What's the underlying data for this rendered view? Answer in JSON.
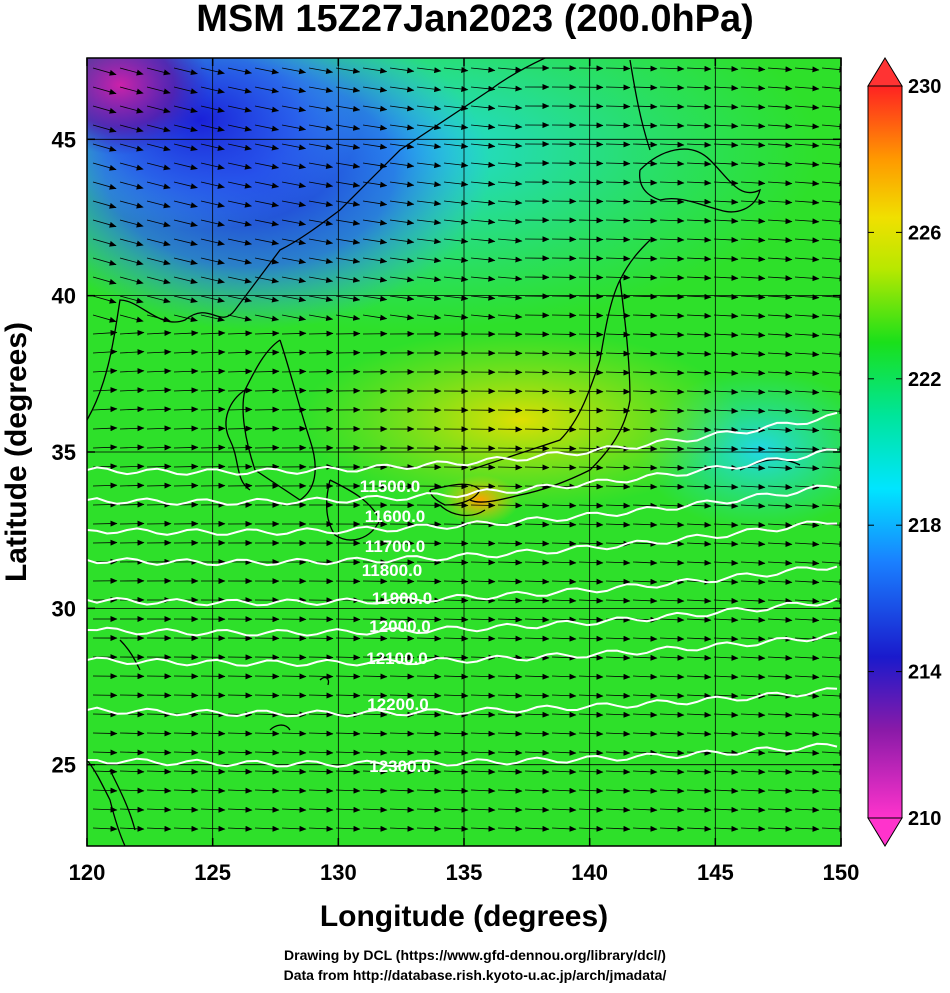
{
  "title": "MSM 15Z27Jan2023 (200.0hPa)",
  "axes": {
    "xlabel": "Longitude (degrees)",
    "ylabel": "Latitude  (degrees)",
    "xlim": [
      120,
      150
    ],
    "ylim": [
      22.4,
      47.6
    ],
    "xticks": [
      "120",
      "125",
      "130",
      "135",
      "140",
      "145",
      "150"
    ],
    "yticks": [
      "25",
      "30",
      "35",
      "40",
      "45"
    ]
  },
  "colorbar": {
    "ticks": [
      "210",
      "214",
      "218",
      "222",
      "226",
      "230"
    ],
    "range": [
      210,
      230
    ],
    "colors": {
      "min": "#ff33cc",
      "low": "#1a1acc",
      "mid_low": "#00e5ff",
      "mid": "#1ae01a",
      "high": "#e8e800",
      "higher": "#ff9900",
      "max": "#ff3333"
    }
  },
  "contours": [
    {
      "label": "11500.0",
      "value": 11500
    },
    {
      "label": "11600.0",
      "value": 11600
    },
    {
      "label": "11700.0",
      "value": 11700
    },
    {
      "label": "11800.0",
      "value": 11800
    },
    {
      "label": "11900.0",
      "value": 11900
    },
    {
      "label": "12000.0",
      "value": 12000
    },
    {
      "label": "12100.0",
      "value": 12100
    },
    {
      "label": "12200.0",
      "value": 12200
    },
    {
      "label": "12300.0",
      "value": 12300
    }
  ],
  "credits": {
    "line1": "Drawing by DCL (https://www.gfd-dennou.org/library/dcl/)",
    "line2": "Data from http://database.rish.kyoto-u.ac.jp/arch/jmadata/"
  }
}
